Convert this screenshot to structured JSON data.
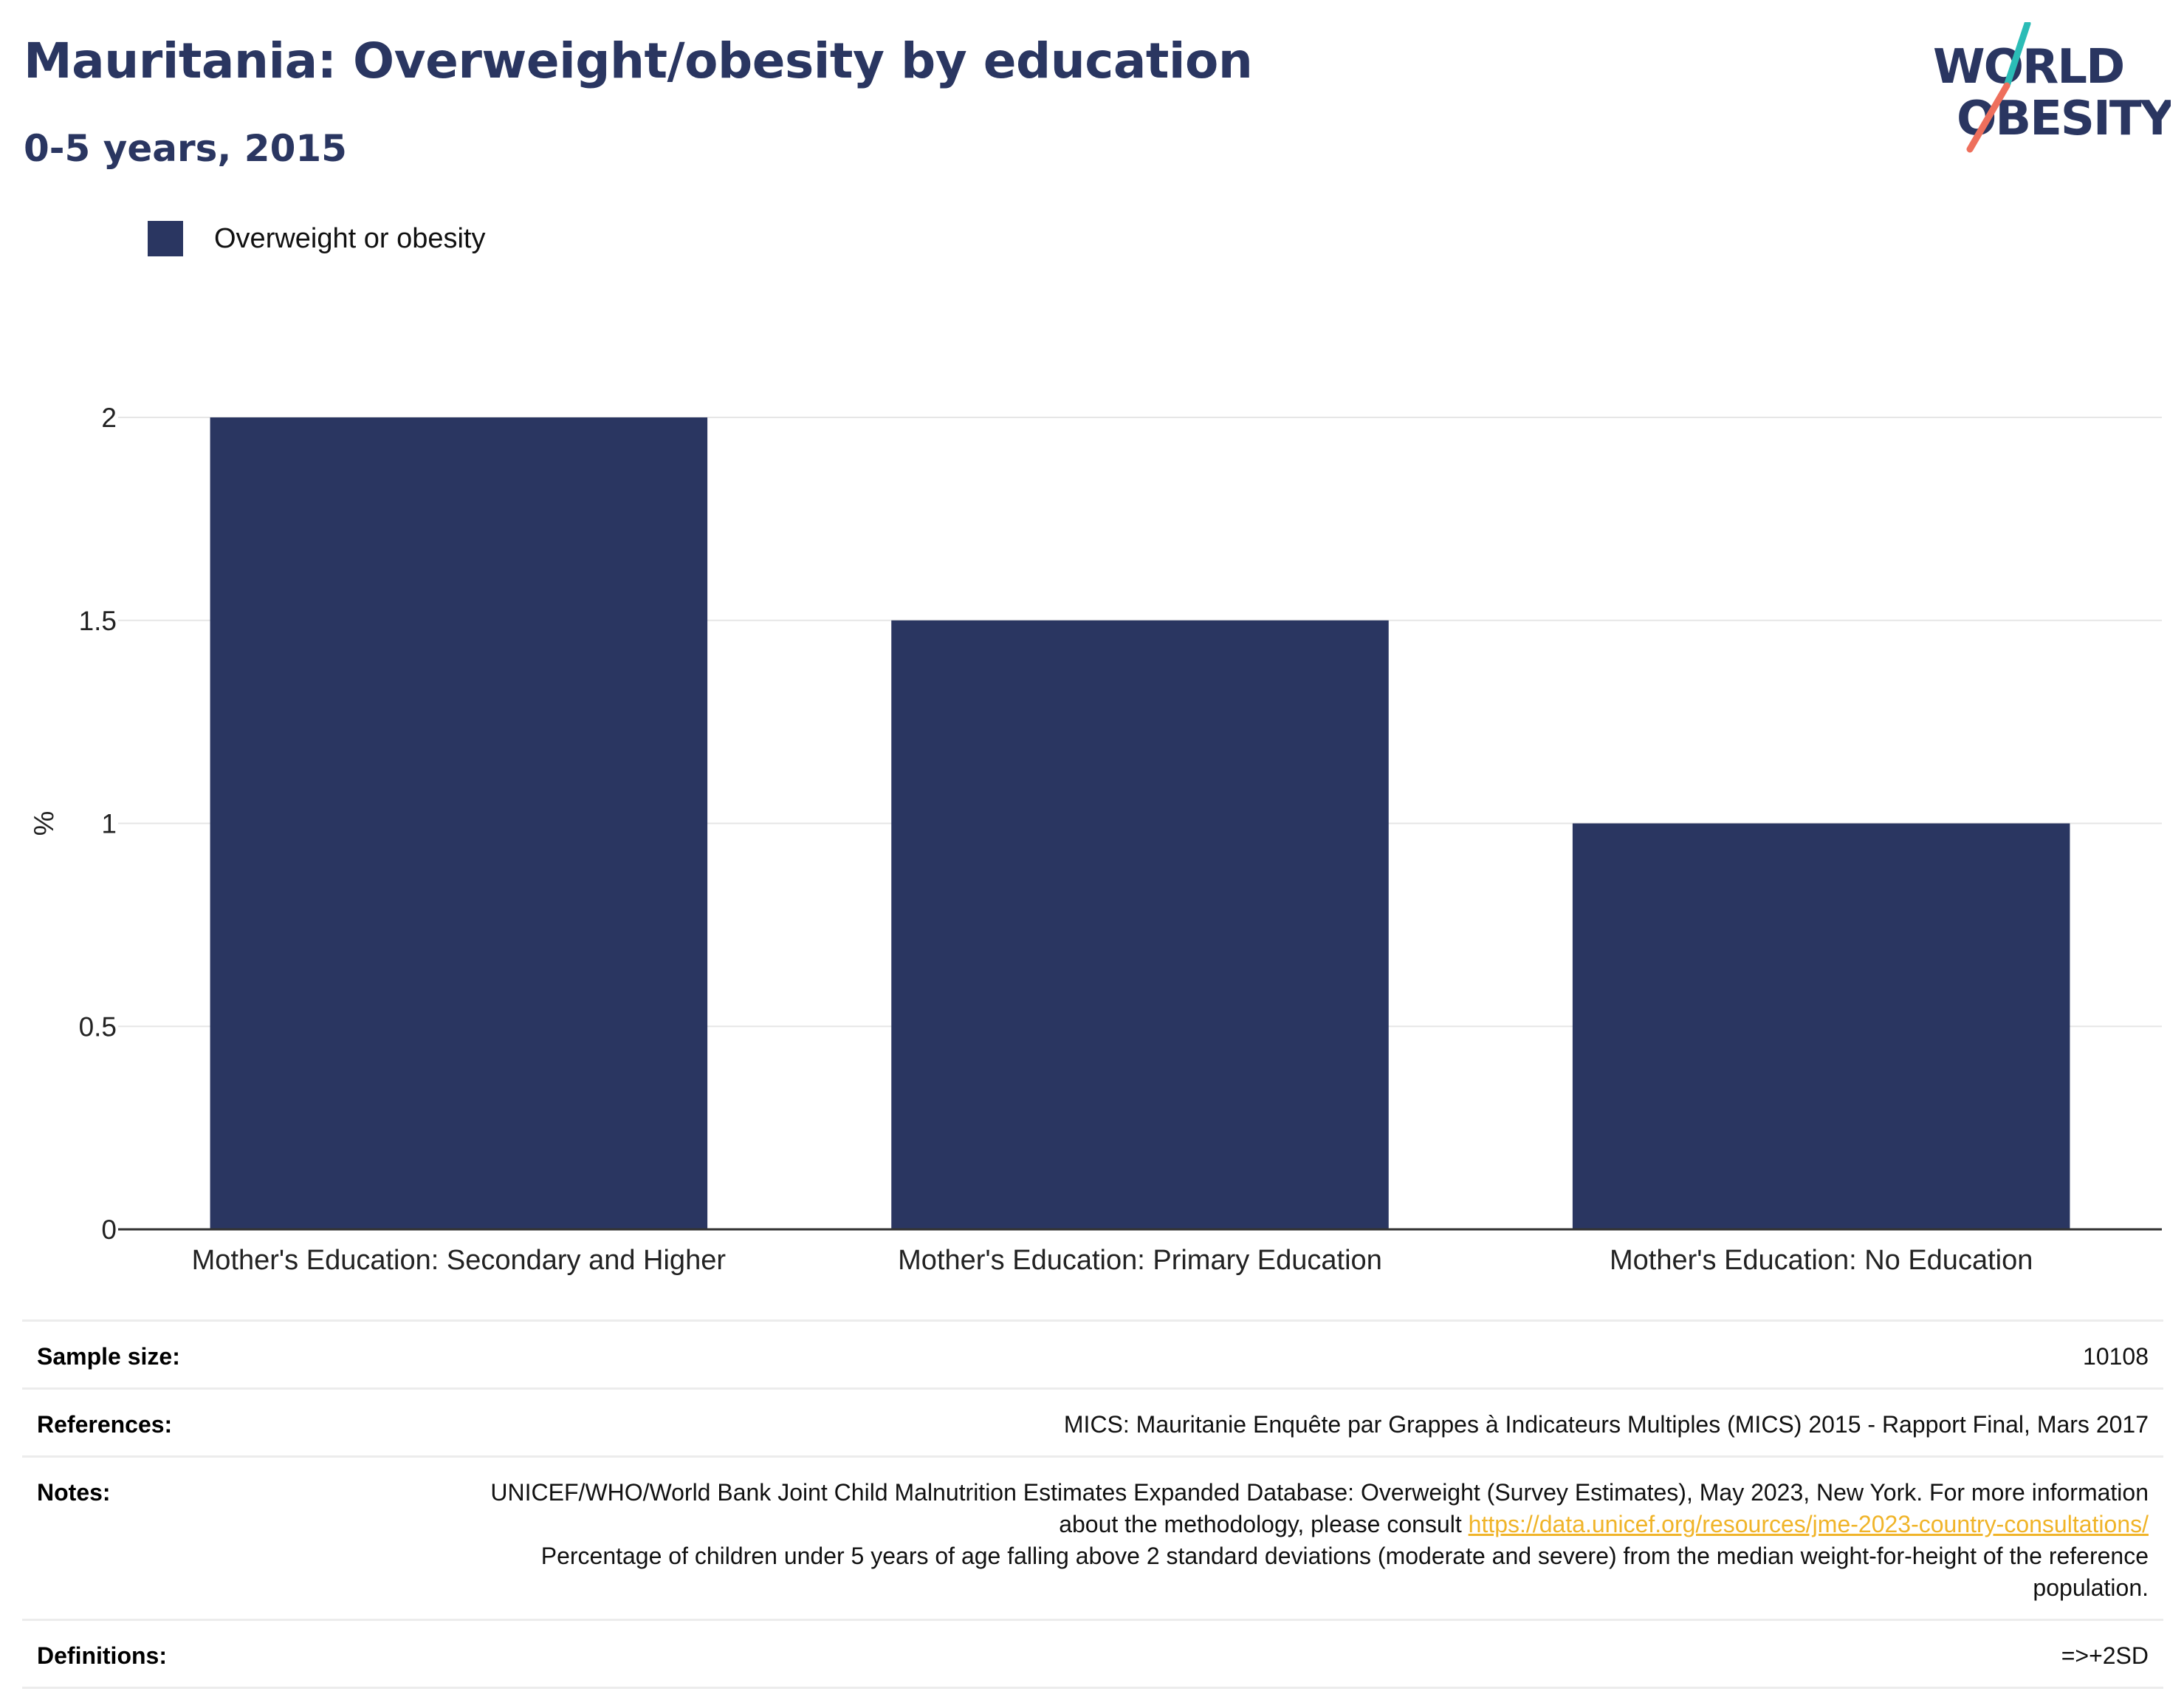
{
  "header": {
    "title": "Mauritania: Overweight/obesity by education",
    "subtitle": "0-5 years, 2015"
  },
  "logo": {
    "line1": "WORLD",
    "line2": "OBESITY",
    "colors": {
      "text": "#2a3661",
      "slash_top": "#2bbcb6",
      "slash_bottom": "#ee6f5c"
    }
  },
  "colors": {
    "bar": "#2a3661",
    "grid": "#e6e6e6",
    "axis": "#333333",
    "link": "#f0b429"
  },
  "chart_data": {
    "type": "bar",
    "title": "",
    "categories": [
      "Mother's Education: Secondary and Higher",
      "Mother's Education: Primary Education",
      "Mother's Education: No Education"
    ],
    "series": [
      {
        "name": "Overweight or obesity",
        "values": [
          2.0,
          1.5,
          1.0
        ]
      }
    ],
    "xlabel": "",
    "ylabel": "%",
    "ylim": [
      0,
      2
    ],
    "yticks": [
      0,
      0.5,
      1,
      1.5,
      2
    ],
    "ytick_labels": [
      "0",
      "0.5",
      "1",
      "1.5",
      "2"
    ],
    "grid": true,
    "legend_position": "top-left"
  },
  "info": {
    "sample_size_label": "Sample size:",
    "sample_size_value": "10108",
    "references_label": "References:",
    "references_value": "MICS: Mauritanie Enquête par Grappes à Indicateurs Multiples (MICS) 2015 - Rapport Final, Mars 2017",
    "notes_label": "Notes:",
    "notes_text1": "UNICEF/WHO/World Bank Joint Child Malnutrition Estimates Expanded Database: Overweight (Survey Estimates), May 2023, New York. For more information about the methodology, please consult ",
    "notes_link": "https://data.unicef.org/resources/jme-2023-country-consultations/",
    "notes_text2": "Percentage of children under 5 years of age falling above 2 standard deviations (moderate and severe) from the median weight-for-height of the reference population.",
    "definitions_label": "Definitions:",
    "definitions_value": "=>+2SD"
  }
}
